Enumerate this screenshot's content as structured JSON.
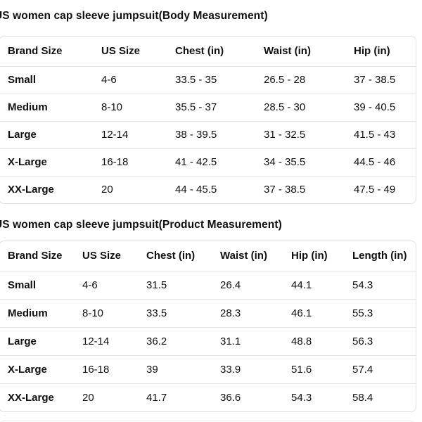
{
  "theme": {
    "page_bg": "#ffffff",
    "text_color": "#0F1111",
    "card_border": "#DFE2E2",
    "divider_color": "#E3E6E6",
    "faint_border": "#EDF0F0"
  },
  "tables": [
    {
      "title": "US women cap sleeve jumpsuit(Body Measurement)",
      "columns": [
        "Brand Size",
        "US Size",
        "Chest (in)",
        "Waist (in)",
        "Hip (in)"
      ],
      "rows": [
        [
          "Small",
          "4-6",
          "33.5 - 35",
          "26.5 - 28",
          "37 - 38.5"
        ],
        [
          "Medium",
          "8-10",
          "35.5 - 37",
          "28.5 - 30",
          "39 - 40.5"
        ],
        [
          "Large",
          "12-14",
          "38 - 39.5",
          "31 - 32.5",
          "41.5 - 43"
        ],
        [
          "X-Large",
          "16-18",
          "41 - 42.5",
          "34 - 35.5",
          "44.5 - 46"
        ],
        [
          "XX-Large",
          "20",
          "44 - 45.5",
          "37 - 38.5",
          "47.5 - 49"
        ]
      ]
    },
    {
      "title": "US women cap sleeve jumpsuit(Product Measurement)",
      "columns": [
        "Brand Size",
        "US Size",
        "Chest (in)",
        "Waist (in)",
        "Hip (in)",
        "Length (in)"
      ],
      "rows": [
        [
          "Small",
          "4-6",
          "31.5",
          "26.4",
          "44.1",
          "54.3"
        ],
        [
          "Medium",
          "8-10",
          "33.5",
          "28.3",
          "46.1",
          "55.3"
        ],
        [
          "Large",
          "12-14",
          "36.2",
          "31.1",
          "48.8",
          "56.3"
        ],
        [
          "X-Large",
          "16-18",
          "39",
          "33.9",
          "51.6",
          "57.4"
        ],
        [
          "XX-Large",
          "20",
          "41.7",
          "36.6",
          "54.3",
          "58.4"
        ]
      ]
    }
  ]
}
